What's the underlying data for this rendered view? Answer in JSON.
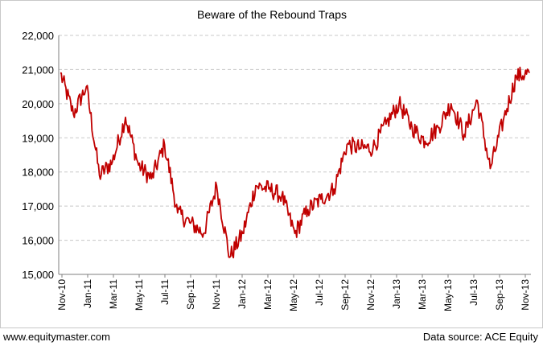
{
  "chart_data": {
    "type": "line",
    "title": "Beware of the Rebound Traps",
    "xlabel": "",
    "ylabel": "",
    "ylim": [
      15000,
      22000
    ],
    "y_ticks": [
      "15,000",
      "16,000",
      "17,000",
      "18,000",
      "19,000",
      "20,000",
      "21,000",
      "22,000"
    ],
    "x_ticks": [
      "Nov-10",
      "Jan-11",
      "Mar-11",
      "May-11",
      "Jul-11",
      "Sep-11",
      "Nov-11",
      "Jan-12",
      "Mar-12",
      "May-12",
      "Jul-12",
      "Sep-12",
      "Nov-12",
      "Jan-13",
      "Mar-13",
      "May-13",
      "Jul-13",
      "Sep-13",
      "Nov-13"
    ],
    "grid": true,
    "line_color": "#c00000",
    "series": [
      {
        "x": [
          "Nov-10",
          "Dec-10",
          "Jan-11",
          "Feb-11",
          "Mar-11",
          "Apr-11",
          "May-11",
          "Jun-11",
          "Jul-11",
          "Aug-11",
          "Sep-11",
          "Oct-11",
          "Nov-11",
          "Dec-11",
          "Jan-12",
          "Feb-12",
          "Mar-12",
          "Apr-12",
          "May-12",
          "Jun-12",
          "Jul-12",
          "Aug-12",
          "Sep-12",
          "Oct-12",
          "Nov-12",
          "Dec-12",
          "Jan-13",
          "Feb-13",
          "Mar-13",
          "Apr-13",
          "May-13",
          "Jun-13",
          "Jul-13",
          "Aug-13",
          "Sep-13",
          "Oct-13",
          "Nov-13"
        ],
        "values": [
          20900,
          19700,
          20500,
          17900,
          18300,
          19600,
          18200,
          17800,
          18800,
          16800,
          16500,
          16200,
          17600,
          15500,
          16200,
          17600,
          17500,
          17300,
          16200,
          16900,
          17200,
          17500,
          18800,
          18700,
          18700,
          19400,
          20000,
          19300,
          18900,
          19300,
          20000,
          19100,
          20100,
          18100,
          19500,
          20800,
          20900
        ]
      }
    ]
  },
  "footer": {
    "site": "www.equitymaster.com",
    "source": "Data source: ACE Equity"
  }
}
